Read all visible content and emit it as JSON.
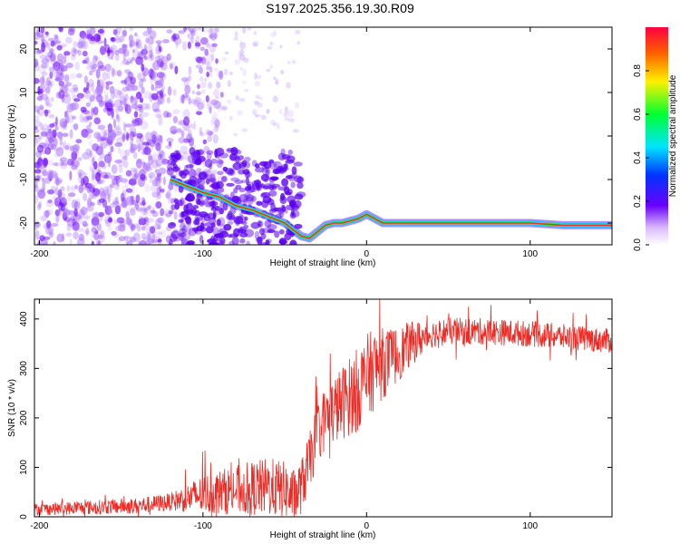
{
  "title": "S197.2025.356.19.30.R09",
  "colors": {
    "spectrogram_line": "#ff2a1a",
    "snr_trace": "#ee2a24",
    "scatter_base": "#8a2be2"
  },
  "chart_data": [
    {
      "type": "heatmap",
      "name": "spectrogram",
      "xlabel": "Height of straight line (km)",
      "ylabel": "Frequency (Hz)",
      "xlim": [
        -203,
        150
      ],
      "ylim": [
        -25,
        25
      ],
      "xticks": [
        -200,
        -100,
        0,
        100
      ],
      "yticks": [
        -20,
        -10,
        0,
        10,
        20
      ],
      "colorbar": {
        "label": "Normalized spectral amplitude",
        "range": [
          0,
          1
        ],
        "ticks": [
          0.0,
          0.2,
          0.4,
          0.6,
          0.8
        ],
        "tick_labels": [
          "0.0",
          "0.2",
          "0.4",
          "0.6",
          "0.8"
        ]
      },
      "signal_track": {
        "x": [
          -120,
          -100,
          -90,
          -80,
          -70,
          -60,
          -50,
          -45,
          -40,
          -35,
          -30,
          -25,
          -20,
          -15,
          -10,
          -5,
          0,
          5,
          10,
          20,
          40,
          60,
          80,
          100,
          120,
          150
        ],
        "y": [
          -10,
          -13,
          -14,
          -16,
          -17,
          -18.5,
          -20,
          -21.5,
          -23,
          -23.5,
          -22,
          -20.5,
          -20,
          -20,
          -19.5,
          -19,
          -18,
          -19,
          -20,
          -20,
          -20,
          -20,
          -20,
          -20,
          -20.5,
          -20.5
        ]
      }
    },
    {
      "type": "line",
      "name": "snr",
      "xlabel": "Height of straight line (km)",
      "ylabel": "SNR (10 * v/v)",
      "xlim": [
        -203,
        150
      ],
      "ylim": [
        0,
        440
      ],
      "xticks": [
        -200,
        -100,
        0,
        100
      ],
      "yticks": [
        0,
        100,
        200,
        300,
        400
      ],
      "trend": {
        "x": [
          -203,
          -160,
          -140,
          -120,
          -100,
          -80,
          -60,
          -50,
          -45,
          -40,
          -35,
          -30,
          -25,
          -20,
          -15,
          -10,
          -5,
          0,
          5,
          10,
          15,
          20,
          25,
          30,
          40,
          50,
          70,
          100,
          150
        ],
        "y": [
          15,
          20,
          22,
          30,
          45,
          55,
          60,
          55,
          40,
          60,
          110,
          170,
          200,
          215,
          230,
          245,
          260,
          280,
          300,
          310,
          320,
          330,
          345,
          355,
          370,
          375,
          375,
          370,
          355
        ]
      },
      "noise_amplitude": {
        "x": [
          -203,
          -120,
          -100,
          -60,
          -40,
          -20,
          0,
          20,
          40,
          150
        ],
        "y": [
          12,
          18,
          40,
          60,
          55,
          70,
          90,
          55,
          28,
          25
        ]
      }
    }
  ]
}
